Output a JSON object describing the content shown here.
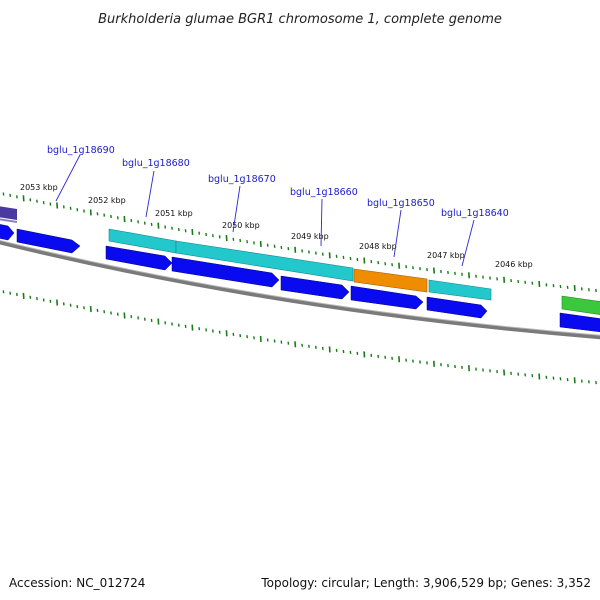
{
  "title": "Burkholderia glumae BGR1 chromosome 1, complete genome",
  "footer": {
    "accession": "Accession: NC_012724",
    "summary": "Topology: circular; Length: 3,906,529 bp; Genes: 3,352"
  },
  "kbp_labels": [
    "2053 kbp",
    "2052 kbp",
    "2051 kbp",
    "2050 kbp",
    "2049 kbp",
    "2048 kbp",
    "2047 kbp",
    "2046 kbp"
  ],
  "gene_labels": [
    "bglu_1g18690",
    "bglu_1g18680",
    "bglu_1g18670",
    "bglu_1g18660",
    "bglu_1g18650",
    "bglu_1g18640"
  ],
  "colors": {
    "backbone": "#7a7a7a",
    "cds": "#0a0af0",
    "gene_cyan": "#22c8cc",
    "gene_orange": "#f08c00",
    "gene_green": "#3cc83c",
    "gene_purple": "#4a3aa0",
    "tick": "#1a7a1a",
    "leader": "#2a2ad0"
  }
}
